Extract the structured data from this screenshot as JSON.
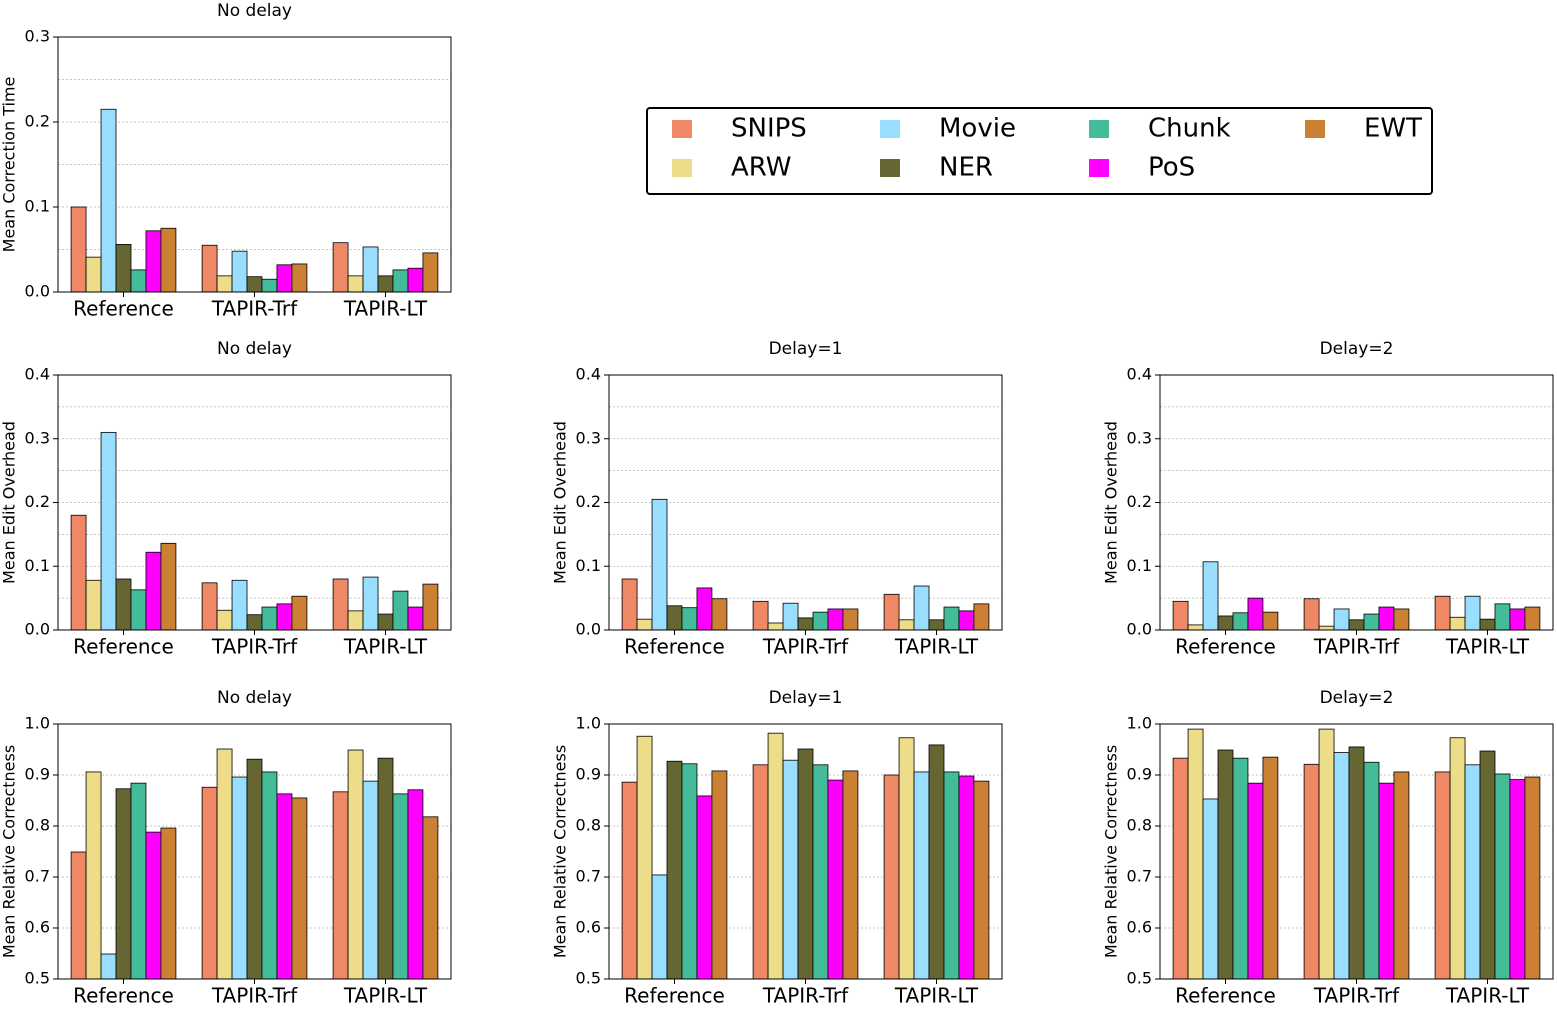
{
  "chart_data": [
    {
      "type": "bar",
      "title": "No delay",
      "y_label": "Mean Correction Time",
      "categories": [
        "Reference",
        "TAPIR-Trf",
        "TAPIR-LT"
      ],
      "ylim": [
        0,
        0.3
      ],
      "yticks": [
        {
          "value": 0,
          "label": "0.0"
        },
        0.1,
        0.2,
        0.3
      ],
      "y_minor_gridlines": [
        0.05,
        0.15,
        0.25
      ],
      "grid": true,
      "series": [
        {
          "name": "SNIPS",
          "color": "#ee8866",
          "values": [
            0.1,
            0.055,
            0.058
          ]
        },
        {
          "name": "ARW",
          "color": "#eedd88",
          "values": [
            0.041,
            0.019,
            0.019
          ]
        },
        {
          "name": "Movie",
          "color": "#99ddff",
          "values": [
            0.215,
            0.048,
            0.053
          ]
        },
        {
          "name": "NER",
          "color": "#666633",
          "values": [
            0.056,
            0.018,
            0.019
          ]
        },
        {
          "name": "Chunk",
          "color": "#44bb99",
          "values": [
            0.026,
            0.015,
            0.026
          ]
        },
        {
          "name": "PoS",
          "color": "#ff00ff",
          "values": [
            0.072,
            0.032,
            0.028
          ]
        },
        {
          "name": "EWT",
          "color": "#cc8033",
          "values": [
            0.075,
            0.033,
            0.046
          ]
        }
      ]
    },
    {
      "type": "bar",
      "title": "No delay",
      "y_label": "Mean Edit Overhead",
      "categories": [
        "Reference",
        "TAPIR-Trf",
        "TAPIR-LT"
      ],
      "ylim": [
        0,
        0.4
      ],
      "yticks": [
        {
          "value": 0,
          "label": "0.0"
        },
        0.1,
        0.2,
        0.3,
        0.4
      ],
      "y_minor_gridlines": [
        0.05,
        0.15,
        0.25,
        0.35
      ],
      "grid": true,
      "series": [
        {
          "name": "SNIPS",
          "color": "#ee8866",
          "values": [
            0.18,
            0.074,
            0.08
          ]
        },
        {
          "name": "ARW",
          "color": "#eedd88",
          "values": [
            0.078,
            0.031,
            0.03
          ]
        },
        {
          "name": "Movie",
          "color": "#99ddff",
          "values": [
            0.31,
            0.078,
            0.083
          ]
        },
        {
          "name": "NER",
          "color": "#666633",
          "values": [
            0.08,
            0.024,
            0.025
          ]
        },
        {
          "name": "Chunk",
          "color": "#44bb99",
          "values": [
            0.063,
            0.036,
            0.061
          ]
        },
        {
          "name": "PoS",
          "color": "#ff00ff",
          "values": [
            0.122,
            0.041,
            0.036
          ]
        },
        {
          "name": "EWT",
          "color": "#cc8033",
          "values": [
            0.136,
            0.053,
            0.072
          ]
        }
      ]
    },
    {
      "type": "bar",
      "title": "Delay=1",
      "y_label": "Mean Edit Overhead",
      "categories": [
        "Reference",
        "TAPIR-Trf",
        "TAPIR-LT"
      ],
      "ylim": [
        0,
        0.4
      ],
      "yticks": [
        {
          "value": 0,
          "label": "0.0"
        },
        0.1,
        0.2,
        0.3,
        0.4
      ],
      "y_minor_gridlines": [
        0.05,
        0.15,
        0.25,
        0.35
      ],
      "grid": true,
      "series": [
        {
          "name": "SNIPS",
          "color": "#ee8866",
          "values": [
            0.08,
            0.045,
            0.056
          ]
        },
        {
          "name": "ARW",
          "color": "#eedd88",
          "values": [
            0.017,
            0.011,
            0.016
          ]
        },
        {
          "name": "Movie",
          "color": "#99ddff",
          "values": [
            0.205,
            0.042,
            0.069
          ]
        },
        {
          "name": "NER",
          "color": "#666633",
          "values": [
            0.038,
            0.019,
            0.016
          ]
        },
        {
          "name": "Chunk",
          "color": "#44bb99",
          "values": [
            0.035,
            0.028,
            0.036
          ]
        },
        {
          "name": "PoS",
          "color": "#ff00ff",
          "values": [
            0.066,
            0.033,
            0.03
          ]
        },
        {
          "name": "EWT",
          "color": "#cc8033",
          "values": [
            0.049,
            0.033,
            0.041
          ]
        }
      ]
    },
    {
      "type": "bar",
      "title": "Delay=2",
      "y_label": "Mean Edit Overhead",
      "categories": [
        "Reference",
        "TAPIR-Trf",
        "TAPIR-LT"
      ],
      "ylim": [
        0,
        0.4
      ],
      "yticks": [
        {
          "value": 0,
          "label": "0.0"
        },
        0.1,
        0.2,
        0.3,
        0.4
      ],
      "y_minor_gridlines": [
        0.05,
        0.15,
        0.25,
        0.35
      ],
      "grid": true,
      "series": [
        {
          "name": "SNIPS",
          "color": "#ee8866",
          "values": [
            0.045,
            0.049,
            0.053
          ]
        },
        {
          "name": "ARW",
          "color": "#eedd88",
          "values": [
            0.008,
            0.006,
            0.02
          ]
        },
        {
          "name": "Movie",
          "color": "#99ddff",
          "values": [
            0.107,
            0.033,
            0.053
          ]
        },
        {
          "name": "NER",
          "color": "#666633",
          "values": [
            0.022,
            0.016,
            0.017
          ]
        },
        {
          "name": "Chunk",
          "color": "#44bb99",
          "values": [
            0.027,
            0.025,
            0.041
          ]
        },
        {
          "name": "PoS",
          "color": "#ff00ff",
          "values": [
            0.05,
            0.036,
            0.033
          ]
        },
        {
          "name": "EWT",
          "color": "#cc8033",
          "values": [
            0.028,
            0.033,
            0.036
          ]
        }
      ]
    },
    {
      "type": "bar",
      "title": "No delay",
      "y_label": "Mean Relative Correctness",
      "categories": [
        "Reference",
        "TAPIR-Trf",
        "TAPIR-LT"
      ],
      "ylim": [
        0.5,
        1.0
      ],
      "yticks": [
        0.5,
        0.6,
        0.7,
        0.8,
        0.9,
        {
          "value": 1.0,
          "label": "1.0"
        }
      ],
      "grid": true,
      "series": [
        {
          "name": "SNIPS",
          "color": "#ee8866",
          "values": [
            0.749,
            0.876,
            0.867
          ]
        },
        {
          "name": "ARW",
          "color": "#eedd88",
          "values": [
            0.906,
            0.951,
            0.949
          ]
        },
        {
          "name": "Movie",
          "color": "#99ddff",
          "values": [
            0.549,
            0.896,
            0.888
          ]
        },
        {
          "name": "NER",
          "color": "#666633",
          "values": [
            0.873,
            0.931,
            0.933
          ]
        },
        {
          "name": "Chunk",
          "color": "#44bb99",
          "values": [
            0.884,
            0.906,
            0.863
          ]
        },
        {
          "name": "PoS",
          "color": "#ff00ff",
          "values": [
            0.788,
            0.863,
            0.871
          ]
        },
        {
          "name": "EWT",
          "color": "#cc8033",
          "values": [
            0.796,
            0.855,
            0.818
          ]
        }
      ]
    },
    {
      "type": "bar",
      "title": "Delay=1",
      "y_label": "Mean Relative Correctness",
      "categories": [
        "Reference",
        "TAPIR-Trf",
        "TAPIR-LT"
      ],
      "ylim": [
        0.5,
        1.0
      ],
      "yticks": [
        0.5,
        0.6,
        0.7,
        0.8,
        0.9,
        {
          "value": 1.0,
          "label": "1.0"
        }
      ],
      "grid": true,
      "series": [
        {
          "name": "SNIPS",
          "color": "#ee8866",
          "values": [
            0.886,
            0.92,
            0.9
          ]
        },
        {
          "name": "ARW",
          "color": "#eedd88",
          "values": [
            0.976,
            0.982,
            0.973
          ]
        },
        {
          "name": "Movie",
          "color": "#99ddff",
          "values": [
            0.704,
            0.929,
            0.906
          ]
        },
        {
          "name": "NER",
          "color": "#666633",
          "values": [
            0.927,
            0.951,
            0.959
          ]
        },
        {
          "name": "Chunk",
          "color": "#44bb99",
          "values": [
            0.922,
            0.92,
            0.906
          ]
        },
        {
          "name": "PoS",
          "color": "#ff00ff",
          "values": [
            0.859,
            0.89,
            0.898
          ]
        },
        {
          "name": "EWT",
          "color": "#cc8033",
          "values": [
            0.908,
            0.908,
            0.888
          ]
        }
      ]
    },
    {
      "type": "bar",
      "title": "Delay=2",
      "y_label": "Mean Relative Correctness",
      "categories": [
        "Reference",
        "TAPIR-Trf",
        "TAPIR-LT"
      ],
      "ylim": [
        0.5,
        1.0
      ],
      "yticks": [
        0.5,
        0.6,
        0.7,
        0.8,
        0.9,
        {
          "value": 1.0,
          "label": "1.0"
        }
      ],
      "grid": true,
      "series": [
        {
          "name": "SNIPS",
          "color": "#ee8866",
          "values": [
            0.933,
            0.921,
            0.906
          ]
        },
        {
          "name": "ARW",
          "color": "#eedd88",
          "values": [
            0.99,
            0.99,
            0.973
          ]
        },
        {
          "name": "Movie",
          "color": "#99ddff",
          "values": [
            0.853,
            0.944,
            0.92
          ]
        },
        {
          "name": "NER",
          "color": "#666633",
          "values": [
            0.949,
            0.955,
            0.947
          ]
        },
        {
          "name": "Chunk",
          "color": "#44bb99",
          "values": [
            0.933,
            0.925,
            0.902
          ]
        },
        {
          "name": "PoS",
          "color": "#ff00ff",
          "values": [
            0.884,
            0.884,
            0.891
          ]
        },
        {
          "name": "EWT",
          "color": "#cc8033",
          "values": [
            0.935,
            0.906,
            0.896
          ]
        }
      ]
    }
  ]
}
